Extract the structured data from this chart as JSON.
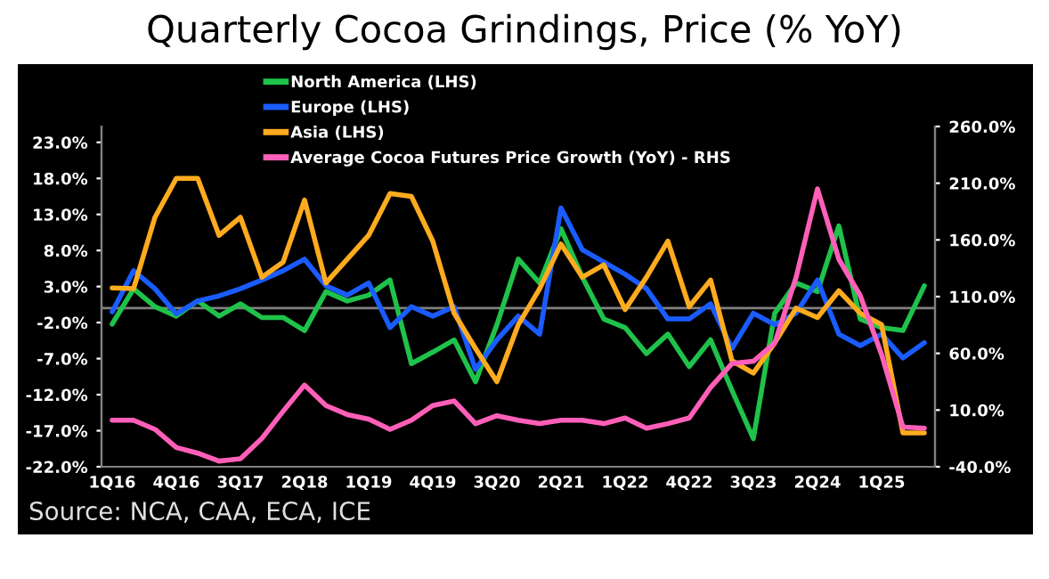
{
  "chart_data": {
    "type": "line",
    "title": "Quarterly Cocoa Grindings, Price (% YoY)",
    "categories": [
      "1Q16",
      null,
      null,
      "4Q16",
      null,
      null,
      "3Q17",
      null,
      null,
      "2Q18",
      null,
      null,
      "1Q19",
      null,
      null,
      "4Q19",
      null,
      null,
      "3Q20",
      null,
      null,
      "2Q21",
      null,
      null,
      "1Q22",
      null,
      null,
      "4Q22",
      null,
      null,
      "3Q23",
      null,
      null,
      "2Q24",
      null,
      null,
      "1Q25",
      null,
      null
    ],
    "series": [
      {
        "name": "North America (LHS)",
        "color": "#1fc24a",
        "values": [
          -2.2,
          2.7,
          0.2,
          -1.1,
          1.0,
          -1.1,
          0.6,
          -1.3,
          -1.3,
          -3.1,
          2.3,
          1.0,
          1.8,
          3.9,
          -7.7,
          -6.1,
          -4.4,
          -10.2,
          -2.3,
          6.8,
          3.5,
          11.0,
          4.3,
          -1.5,
          -2.7,
          -6.3,
          -3.6,
          -8.1,
          -4.4,
          -11.4,
          -18.1,
          -0.7,
          3.5,
          2.3,
          11.4,
          -1.5,
          -2.7,
          -3.1,
          3.1
        ]
      },
      {
        "name": "Europe (LHS)",
        "color": "#1a5cff",
        "values": [
          -0.5,
          5.2,
          2.7,
          -0.8,
          1.0,
          1.7,
          2.7,
          3.9,
          5.2,
          6.8,
          3.1,
          1.8,
          3.5,
          -2.7,
          0.2,
          -1.1,
          0.2,
          -8.5,
          -4.4,
          -1.1,
          -3.6,
          13.9,
          8.1,
          6.4,
          4.7,
          2.7,
          -1.5,
          -1.5,
          0.6,
          -5.6,
          -0.7,
          -2.3,
          -0.7,
          3.9,
          -3.6,
          -5.2,
          -3.6,
          -6.9,
          -4.8
        ]
      },
      {
        "name": "Asia (LHS)",
        "color": "#ffab1f",
        "values": [
          2.8,
          2.7,
          12.6,
          18.0,
          18.0,
          10.1,
          12.6,
          4.3,
          6.4,
          15.0,
          3.5,
          6.8,
          10.1,
          15.9,
          15.5,
          9.3,
          -0.7,
          -5.6,
          -10.2,
          -2.3,
          2.7,
          8.9,
          4.3,
          6.0,
          -0.2,
          4.3,
          9.3,
          0.2,
          3.9,
          -7.3,
          -9.0,
          -4.8,
          0.0,
          -1.3,
          2.4,
          -0.7,
          -2.3,
          -17.3,
          -17.3
        ]
      },
      {
        "name": "Average Cocoa Futures Price Growth (YoY) - RHS",
        "color": "#ff5fb8",
        "axis": "y2",
        "values": [
          1,
          1,
          -7,
          -23,
          -28,
          -35,
          -33,
          -15,
          9,
          32,
          14,
          6,
          2,
          -7,
          1,
          14,
          18,
          -2,
          5,
          1,
          -2,
          1,
          1,
          -2,
          3,
          -6,
          -2,
          3,
          30,
          51,
          53,
          69,
          127,
          205,
          143,
          111,
          59,
          -5,
          -6
        ]
      }
    ],
    "ylim": [
      -22,
      25.2
    ],
    "yticks": [
      {
        "value": -22,
        "label": "-22.0%"
      },
      {
        "value": -17,
        "label": "-17.0%"
      },
      {
        "value": -12,
        "label": "-12.0%"
      },
      {
        "value": -7,
        "label": "-7.0%"
      },
      {
        "value": -2,
        "label": "-2.0%"
      },
      {
        "value": 3,
        "label": "3.0%"
      },
      {
        "value": 8,
        "label": "8.0%"
      },
      {
        "value": 13,
        "label": "13.0%"
      },
      {
        "value": 18,
        "label": "18.0%"
      },
      {
        "value": 23,
        "label": "23.0%"
      }
    ],
    "y2lim": [
      -40,
      260
    ],
    "y2ticks": [
      {
        "value": -40,
        "label": "-40.0%"
      },
      {
        "value": 10,
        "label": "10.0%"
      },
      {
        "value": 60,
        "label": "60.0%"
      },
      {
        "value": 110,
        "label": "110.0%"
      },
      {
        "value": 160,
        "label": "160.0%"
      },
      {
        "value": 210,
        "label": "210.0%"
      },
      {
        "value": 260,
        "label": "260.0%"
      }
    ],
    "ref_lines": [
      {
        "axis": "y",
        "value": 0,
        "color": "#808080"
      }
    ],
    "legend": "top left",
    "grid": false,
    "marker": "none",
    "line_style": "solid",
    "annotations": [
      "Source: NCA, CAA, ECA, ICE"
    ]
  }
}
